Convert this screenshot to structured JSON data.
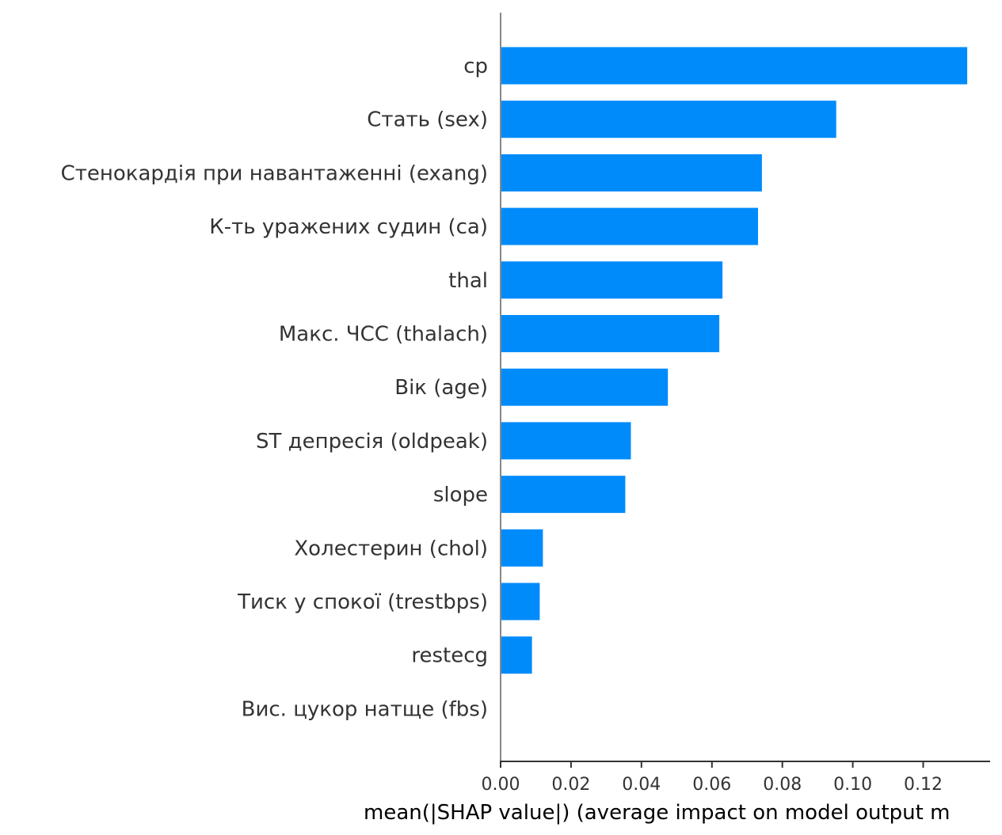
{
  "chart_data": {
    "type": "bar",
    "orientation": "horizontal",
    "categories": [
      "cp",
      "Стать (sex)",
      "Стенокардія при навантаженні (exang)",
      "К-ть уражених судин (ca)",
      "thal",
      "Макс. ЧСС (thalach)",
      "Вік (age)",
      "ST депресія (oldpeak)",
      "slope",
      "Холестерин (chol)",
      "Тиск у спокої (trestbps)",
      "restecg",
      "Вис. цукор натще (fbs)"
    ],
    "values": [
      0.1325,
      0.0953,
      0.0742,
      0.0731,
      0.063,
      0.0621,
      0.0475,
      0.037,
      0.0354,
      0.012,
      0.0111,
      0.0089,
      0.0
    ],
    "xlabel": "mean(|SHAP value|) (average impact on model output m",
    "ylabel": "",
    "xlim": [
      0,
      0.139
    ],
    "xticks": [
      0,
      0.02,
      0.04,
      0.06,
      0.08,
      0.1,
      0.12
    ],
    "xtick_labels": [
      "0.00",
      "0.02",
      "0.04",
      "0.06",
      "0.08",
      "0.10",
      "0.12"
    ],
    "bar_color": "#008bfb",
    "axis_color": "#888888",
    "grid": false
  }
}
